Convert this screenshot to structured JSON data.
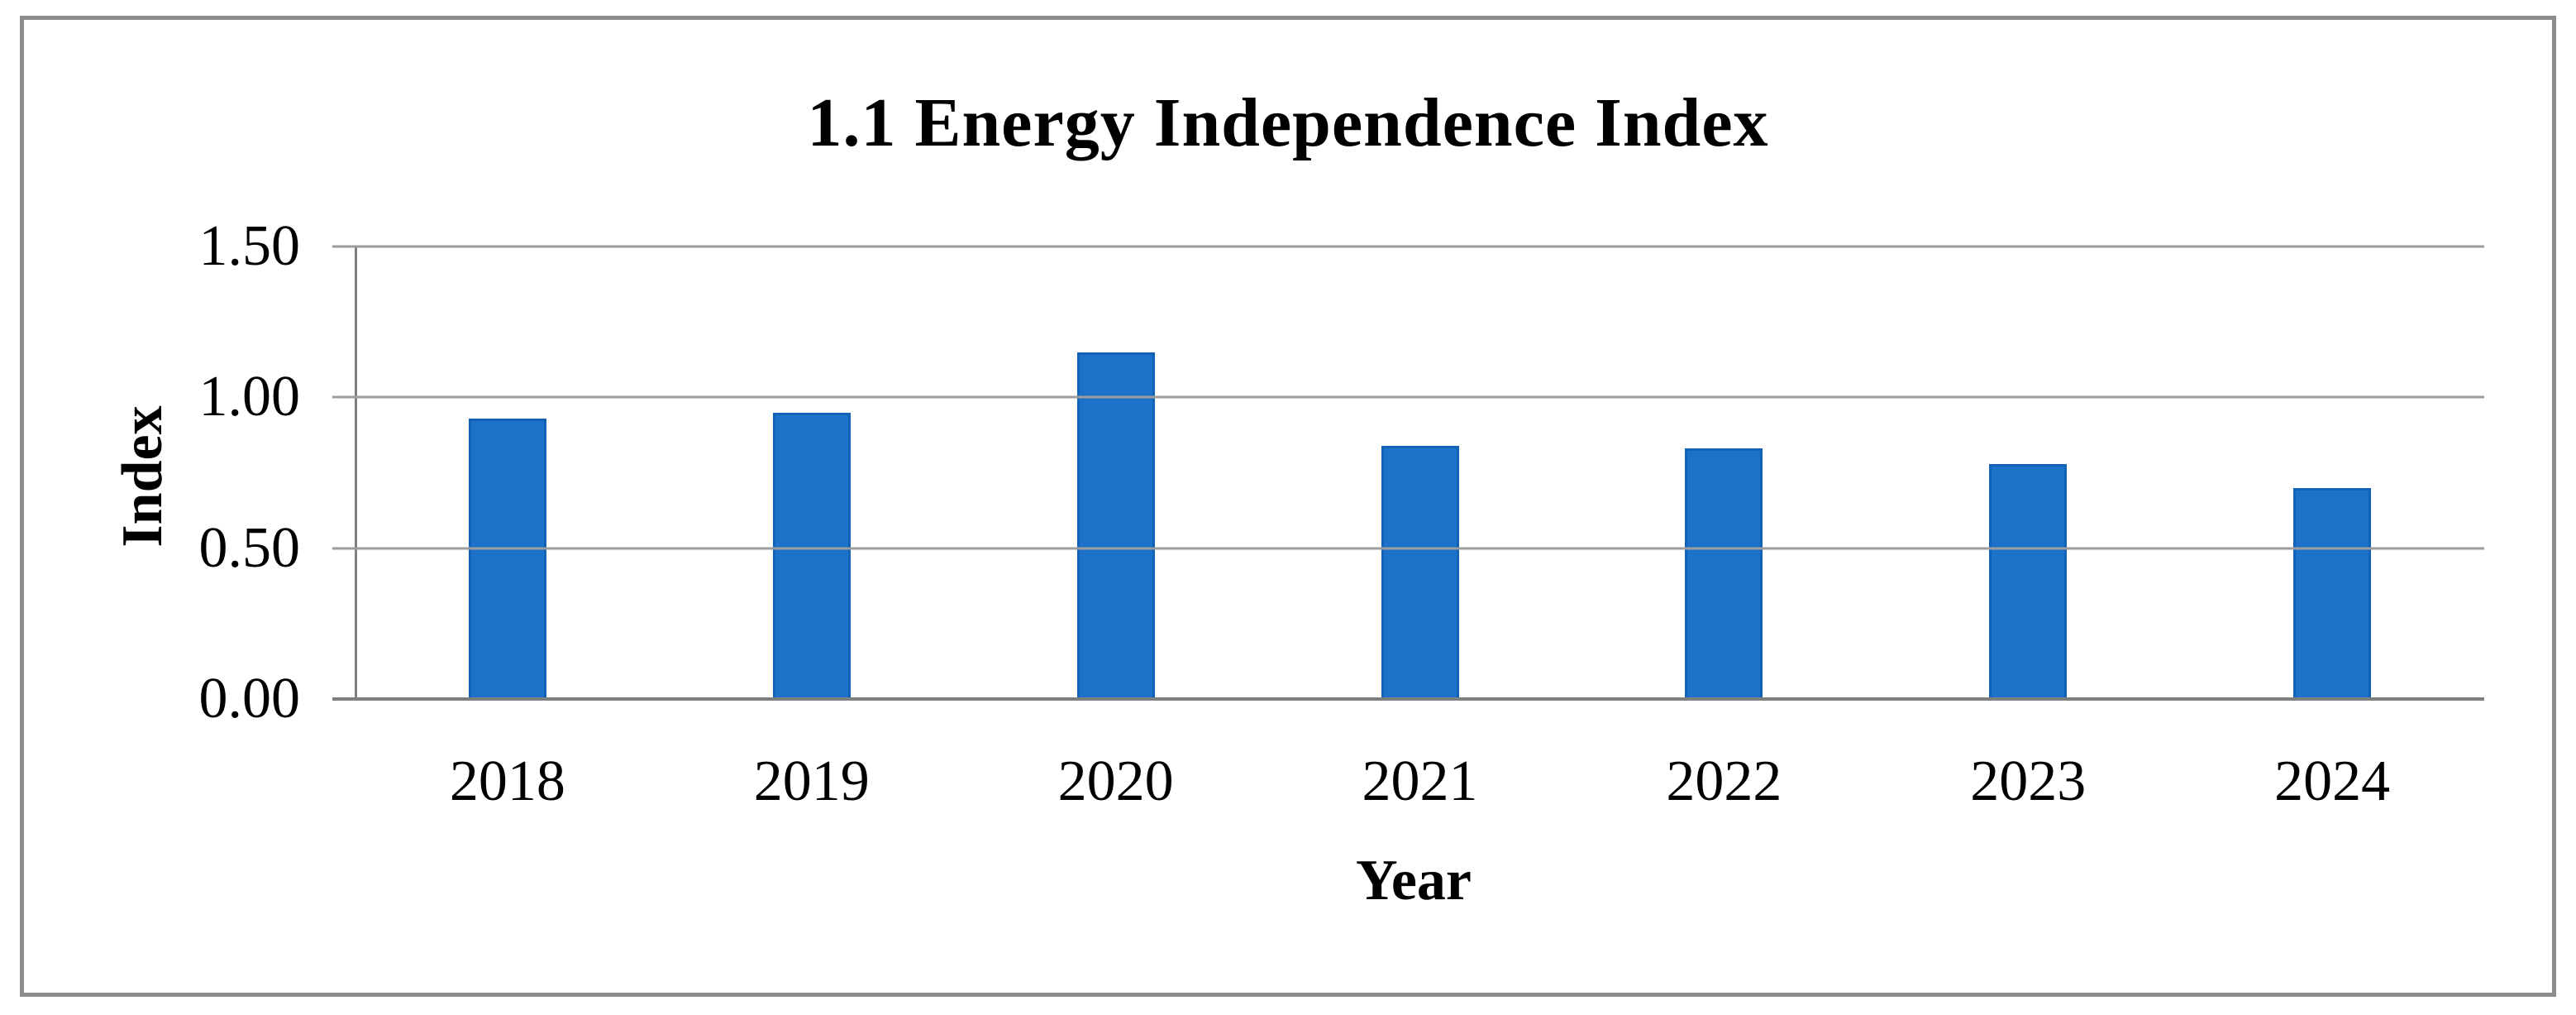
{
  "figure": {
    "title": "1.1 Energy Independence Index"
  },
  "chart_data": {
    "type": "bar",
    "title": "1.1 Energy Independence Index",
    "categories": [
      "2018",
      "2019",
      "2020",
      "2021",
      "2022",
      "2023",
      "2024"
    ],
    "values": [
      0.93,
      0.95,
      1.15,
      0.84,
      0.83,
      0.78,
      0.7
    ],
    "xlabel": "Year",
    "ylabel": "Index",
    "ylim": [
      0,
      1.5
    ],
    "ytick_interval": 0.5,
    "ytick_labels_top_to_bottom": [
      "1.50",
      "1.00",
      "0.50",
      "0.00"
    ],
    "grid": "horizontal-major",
    "legend": "none",
    "bars_per_category": 1,
    "colors": {
      "bar_fill": "#1c72c8",
      "bar_border": "#1263b8",
      "gridline": "#9d9d9d",
      "axis_line": "#7f7f7f",
      "figure_border": "#8c8c8c",
      "text": "#000000",
      "background": "#ffffff"
    }
  }
}
